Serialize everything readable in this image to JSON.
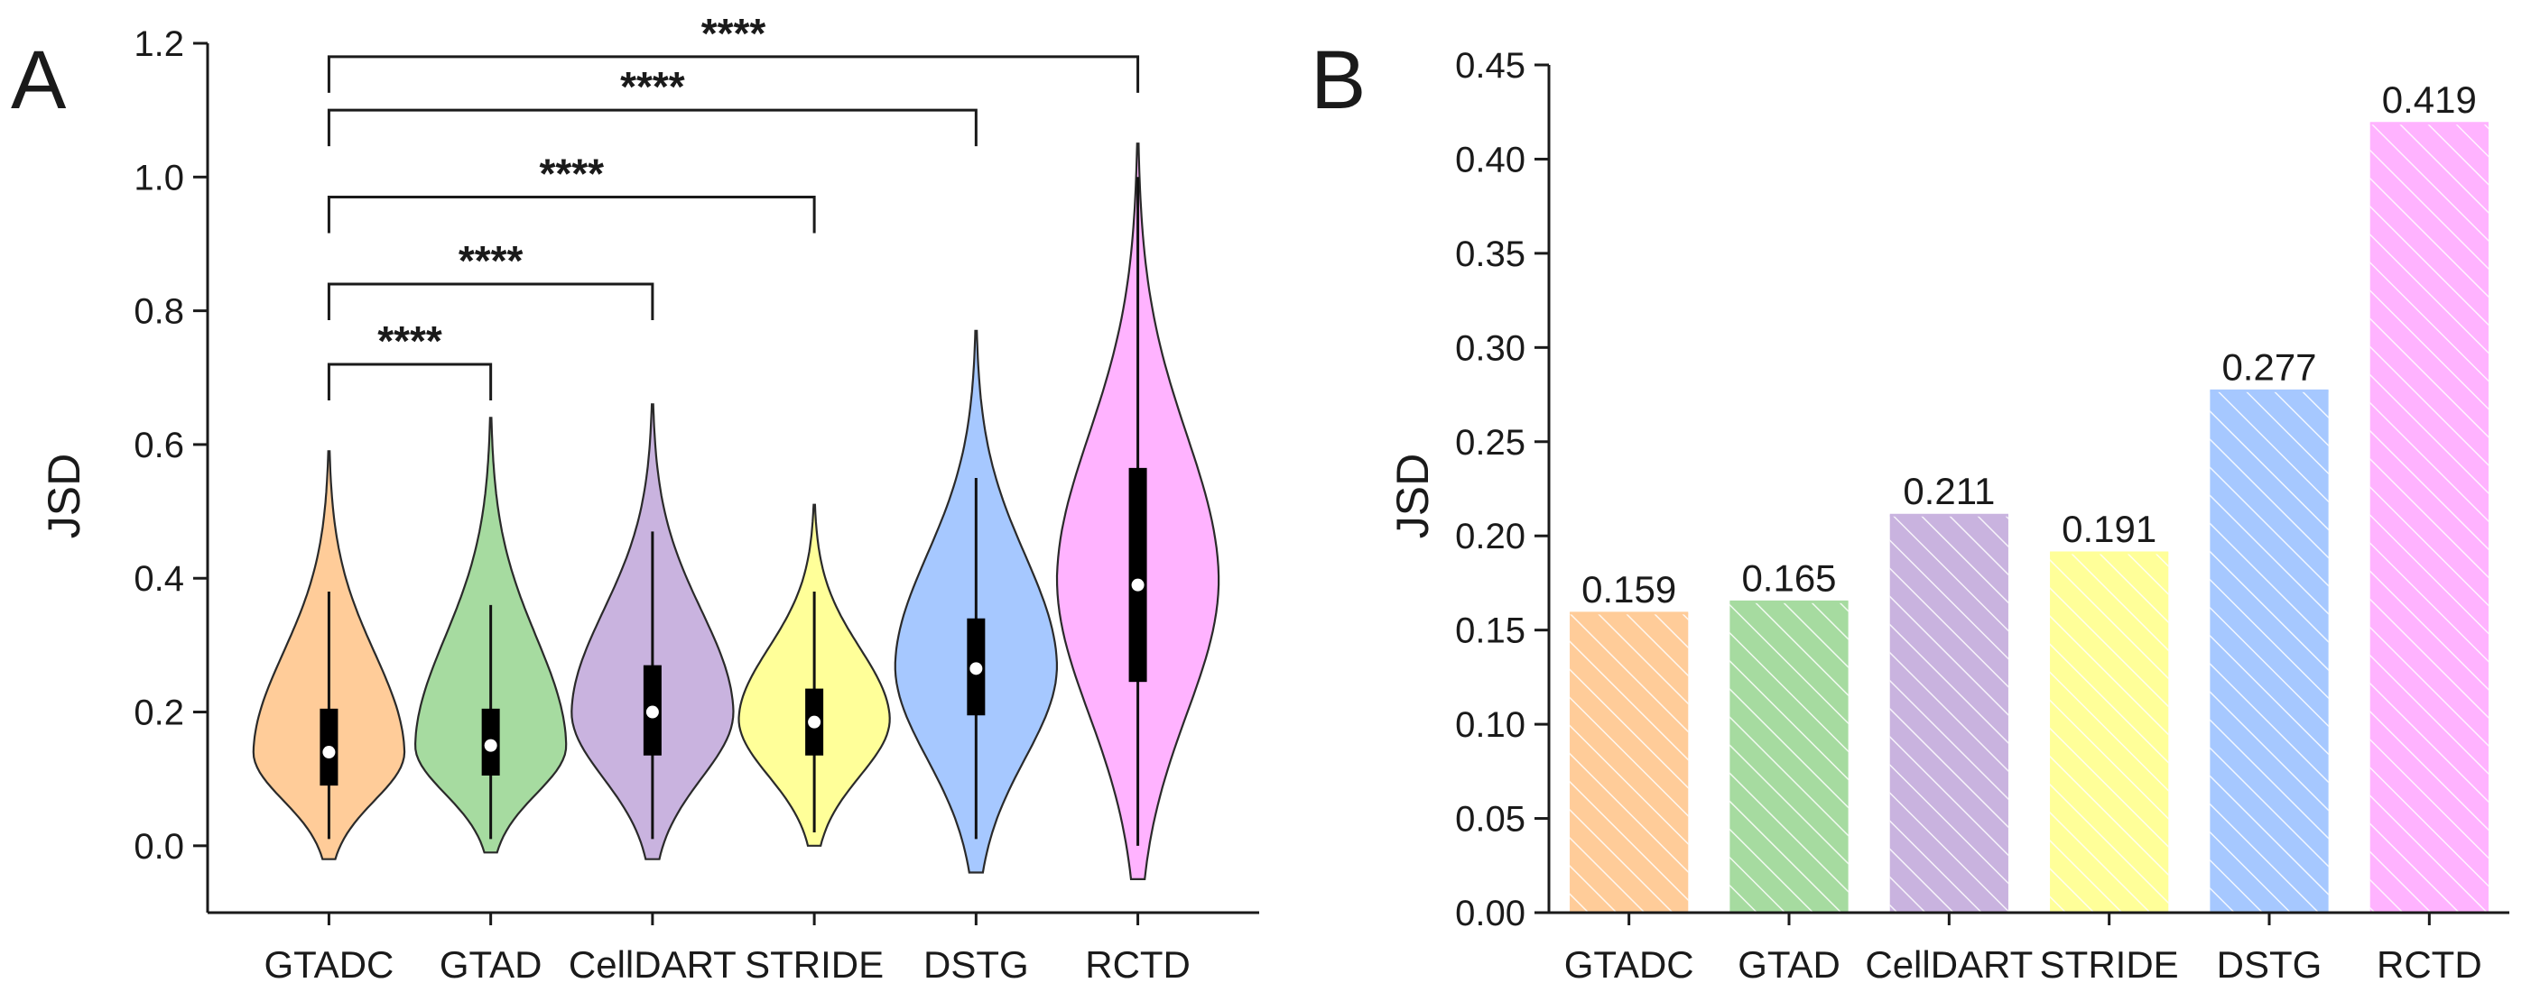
{
  "chart_data": [
    {
      "panel": "A",
      "type": "violin",
      "ylabel": "JSD",
      "ylim": [
        -0.1,
        1.2
      ],
      "yticks": [
        "0.0",
        "0.2",
        "0.4",
        "0.6",
        "0.8",
        "1.0",
        "1.2"
      ],
      "categories": [
        "GTADC",
        "GTAD",
        "CellDART",
        "STRIDE",
        "DSTG",
        "RCTD"
      ],
      "colors": [
        "#ffcc99",
        "#a6dba0",
        "#c9b3df",
        "#ffff99",
        "#a6c8ff",
        "#ffb3ff"
      ],
      "medians": [
        0.14,
        0.15,
        0.2,
        0.185,
        0.265,
        0.39
      ],
      "q1": [
        0.09,
        0.105,
        0.135,
        0.135,
        0.195,
        0.245
      ],
      "q3": [
        0.205,
        0.205,
        0.27,
        0.235,
        0.34,
        0.565
      ],
      "whisker_low": [
        0.01,
        0.01,
        0.01,
        0.02,
        0.01,
        0.0
      ],
      "whisker_high": [
        0.38,
        0.36,
        0.47,
        0.38,
        0.55,
        1.0
      ],
      "violin_min": [
        -0.02,
        -0.01,
        -0.02,
        0.0,
        -0.04,
        -0.05
      ],
      "violin_max": [
        0.59,
        0.64,
        0.66,
        0.51,
        0.77,
        1.05
      ],
      "violin_peak": [
        0.14,
        0.15,
        0.2,
        0.19,
        0.27,
        0.4
      ],
      "violin_halfwidth": [
        0.42,
        0.42,
        0.45,
        0.42,
        0.45,
        0.45
      ],
      "significance": [
        {
          "from": "GTADC",
          "to": "GTAD",
          "label": "****",
          "y": 0.72
        },
        {
          "from": "GTADC",
          "to": "CellDART",
          "label": "****",
          "y": 0.84
        },
        {
          "from": "GTADC",
          "to": "STRIDE",
          "label": "****",
          "y": 0.97
        },
        {
          "from": "GTADC",
          "to": "DSTG",
          "label": "****",
          "y": 1.1
        },
        {
          "from": "GTADC",
          "to": "RCTD",
          "label": "****",
          "y": 1.18
        }
      ]
    },
    {
      "panel": "B",
      "type": "bar",
      "ylabel": "JSD",
      "ylim": [
        0.0,
        0.45
      ],
      "yticks": [
        "0.00",
        "0.05",
        "0.10",
        "0.15",
        "0.20",
        "0.25",
        "0.30",
        "0.35",
        "0.40",
        "0.45"
      ],
      "categories": [
        "GTADC",
        "GTAD",
        "CellDART",
        "STRIDE",
        "DSTG",
        "RCTD"
      ],
      "values": [
        0.159,
        0.165,
        0.211,
        0.191,
        0.277,
        0.419
      ],
      "value_labels": [
        "0.159",
        "0.165",
        "0.211",
        "0.191",
        "0.277",
        "0.419"
      ],
      "colors": [
        "#ffcc99",
        "#a6dba0",
        "#c9b3df",
        "#ffff99",
        "#a6c8ff",
        "#ffb3ff"
      ]
    }
  ]
}
